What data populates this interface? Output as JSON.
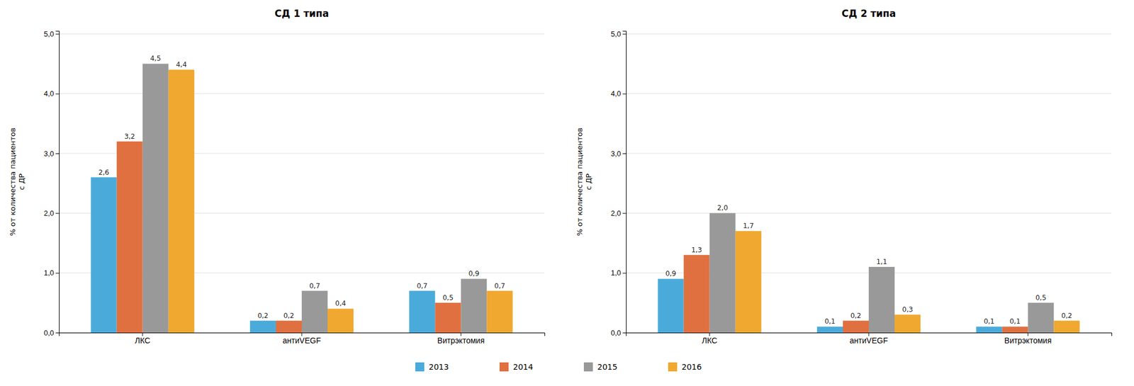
{
  "chart_data": [
    {
      "type": "bar",
      "title": "СД 1 типа",
      "categories": [
        "ЛКС",
        "антиVEGF",
        "Витрэктомия"
      ],
      "series": [
        {
          "name": "2013",
          "color": "#4aabdb",
          "values": [
            2.6,
            0.2,
            0.7
          ],
          "value_labels": [
            "2,6",
            "0,2",
            "0,7"
          ]
        },
        {
          "name": "2014",
          "color": "#e07040",
          "values": [
            3.2,
            0.2,
            0.5
          ],
          "value_labels": [
            "3,2",
            "0,2",
            "0,5"
          ]
        },
        {
          "name": "2015",
          "color": "#999999",
          "values": [
            4.5,
            0.7,
            0.9
          ],
          "value_labels": [
            "4,5",
            "0,7",
            "0,9"
          ]
        },
        {
          "name": "2016",
          "color": "#f0a830",
          "values": [
            4.4,
            0.4,
            0.7
          ],
          "value_labels": [
            "4,4",
            "0,4",
            "0,7"
          ]
        }
      ],
      "ylabel": "% от количества пациентов\nс ДР",
      "ylim": [
        0,
        5.05
      ],
      "yticks": [
        {
          "value": 0,
          "label": "0,0"
        },
        {
          "value": 1,
          "label": "1,0"
        },
        {
          "value": 2,
          "label": "2,0"
        },
        {
          "value": 3,
          "label": "3,0"
        },
        {
          "value": 4,
          "label": "4,0"
        },
        {
          "value": 5,
          "label": "5,0"
        }
      ],
      "grid": true,
      "data_labels": true,
      "legend": "bottom"
    },
    {
      "type": "bar",
      "title": "СД 2 типа",
      "categories": [
        "ЛКС",
        "антиVEGF",
        "Витрэктомия"
      ],
      "series": [
        {
          "name": "2013",
          "color": "#4aabdb",
          "values": [
            0.9,
            0.1,
            0.1
          ],
          "value_labels": [
            "0,9",
            "0,1",
            "0,1"
          ]
        },
        {
          "name": "2014",
          "color": "#e07040",
          "values": [
            1.3,
            0.2,
            0.1
          ],
          "value_labels": [
            "1,3",
            "0,2",
            "0,1"
          ]
        },
        {
          "name": "2015",
          "color": "#999999",
          "values": [
            2.0,
            1.1,
            0.5
          ],
          "value_labels": [
            "2,0",
            "1,1",
            "0,5"
          ]
        },
        {
          "name": "2016",
          "color": "#f0a830",
          "values": [
            1.7,
            0.3,
            0.2
          ],
          "value_labels": [
            "1,7",
            "0,3",
            "0,2"
          ]
        }
      ],
      "ylabel": "% от количества пациентов\nс ДР",
      "ylim": [
        0,
        5.05
      ],
      "yticks": [
        {
          "value": 0,
          "label": "0,0"
        },
        {
          "value": 1,
          "label": "1,0"
        },
        {
          "value": 2,
          "label": "2,0"
        },
        {
          "value": 3,
          "label": "3,0"
        },
        {
          "value": 4,
          "label": "4,0"
        },
        {
          "value": 5,
          "label": "5,0"
        }
      ],
      "grid": true,
      "data_labels": true
    }
  ]
}
